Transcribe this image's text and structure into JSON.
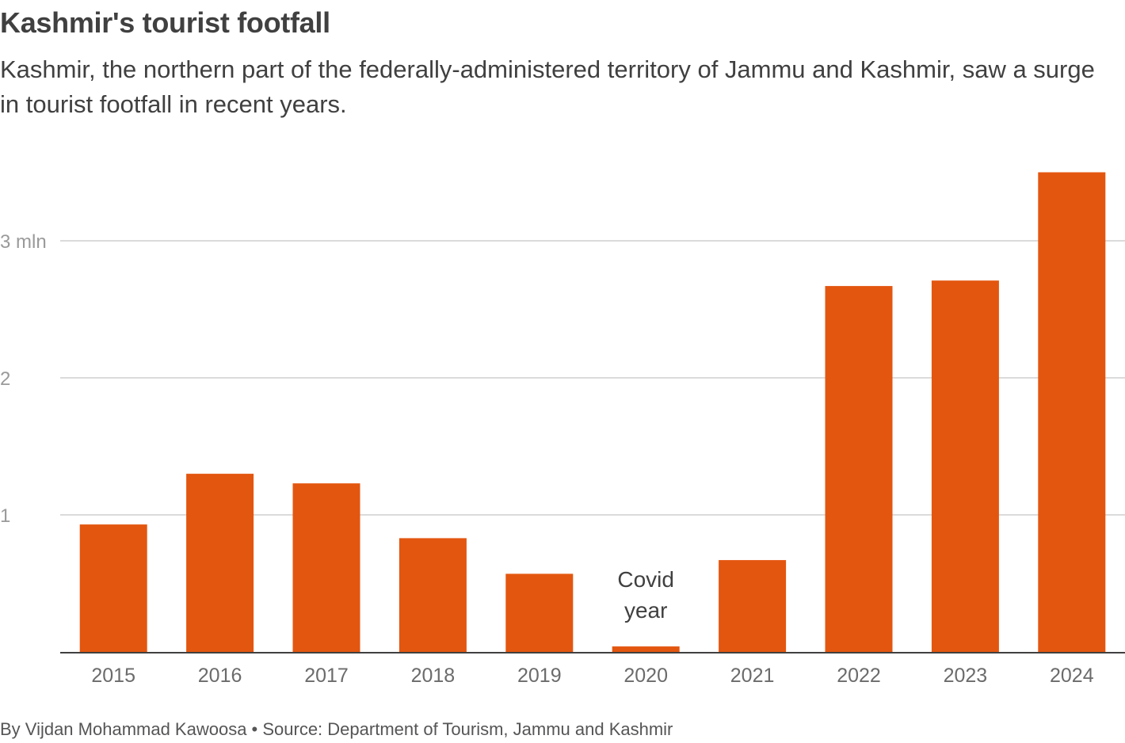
{
  "title": "Kashmir's tourist footfall",
  "subtitle": "Kashmir, the northern part of the federally-administered territory of Jammu and Kashmir, saw a surge in tourist footfall in recent years.",
  "footer": "By Vijdan Mohammad Kawoosa • Source: Department of Tourism, Jammu and Kashmir",
  "colors": {
    "bar": "#e3560f",
    "grid": "#cfcfcf",
    "axis": "#404040"
  },
  "chart_data": {
    "type": "bar",
    "categories": [
      "2015",
      "2016",
      "2017",
      "2018",
      "2019",
      "2020",
      "2021",
      "2022",
      "2023",
      "2024"
    ],
    "values": [
      0.93,
      1.3,
      1.23,
      0.83,
      0.57,
      0.04,
      0.67,
      2.67,
      2.71,
      3.5
    ],
    "ylim": [
      0,
      3.5
    ],
    "yticks": [
      1,
      2,
      3
    ],
    "ytick_labels": [
      "1",
      "2",
      "3 mln"
    ],
    "xlabel": "",
    "ylabel": "",
    "annotations": [
      {
        "category": "2020",
        "lines": [
          "Covid",
          "year"
        ]
      }
    ]
  }
}
